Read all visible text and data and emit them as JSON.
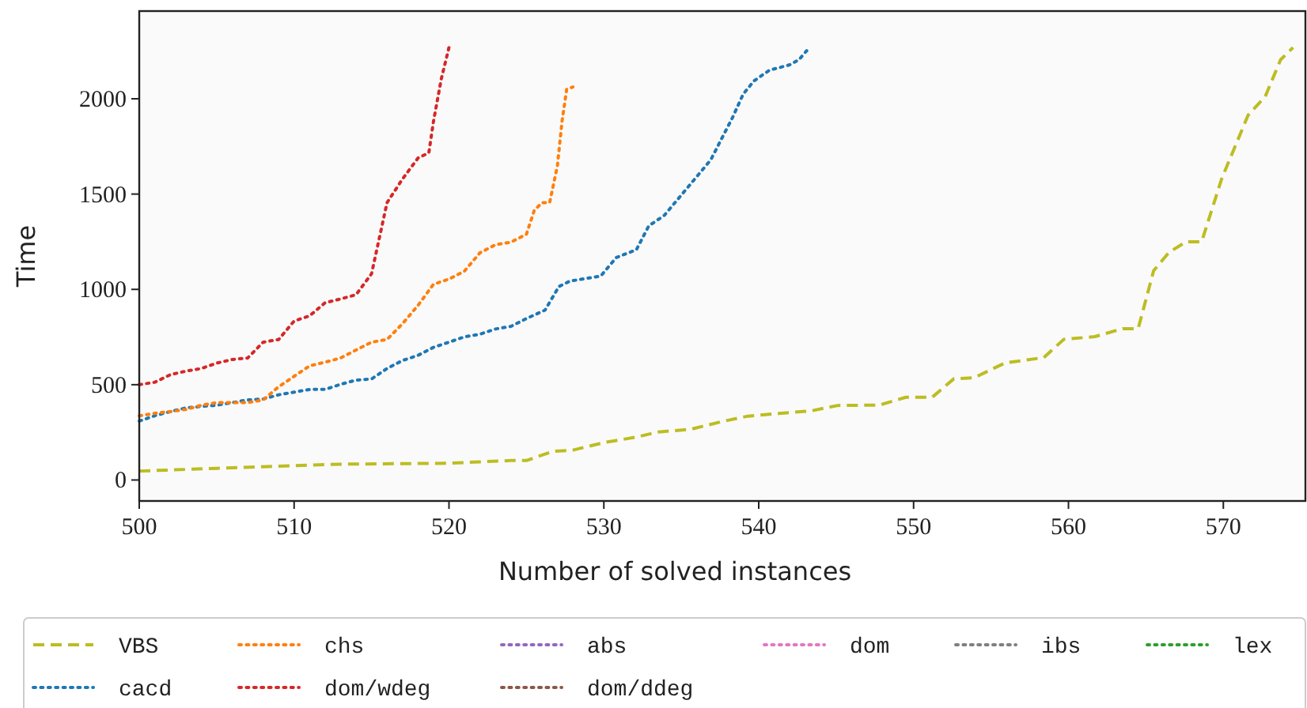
{
  "chart_data": {
    "type": "line",
    "xlabel": "Number of solved instances",
    "ylabel": "Time",
    "xlim": [
      500,
      575.3
    ],
    "ylim": [
      -110,
      2460
    ],
    "xticks": [
      500,
      510,
      520,
      530,
      540,
      550,
      560,
      570
    ],
    "yticks": [
      0,
      500,
      1000,
      1500,
      2000
    ],
    "grid": false,
    "legend": "bottom",
    "series": [
      {
        "name": "VBS",
        "color": "#bcbd22",
        "line_style": "dashed",
        "x": [
          500,
          505,
          510,
          513,
          520,
          521.6,
          524,
          525,
          526.7,
          528,
          530.1,
          532.1,
          533.5,
          535.6,
          537.7,
          539.3,
          541.3,
          543.4,
          545.1,
          547.8,
          549.5,
          551.2,
          552.6,
          553.9,
          555.9,
          558.4,
          559.7,
          561.7,
          563.5,
          564.5,
          565.5,
          566.5,
          567.6,
          568.6,
          569.9,
          571.6,
          572.7,
          573.7,
          574.5
        ],
        "values": [
          47,
          61,
          75,
          83,
          88,
          94,
          102,
          102,
          150,
          157,
          198,
          225,
          252,
          266,
          308,
          335,
          349,
          363,
          391,
          393,
          434,
          434,
          531,
          536,
          614,
          642,
          738,
          752,
          794,
          794,
          1098,
          1195,
          1250,
          1250,
          1582,
          1914,
          2011,
          2205,
          2269
        ]
      },
      {
        "name": "cacd",
        "color": "#1f77b4",
        "line_style": "dotted",
        "x": [
          500,
          501,
          502,
          503,
          504,
          505,
          506,
          507,
          508,
          509,
          510,
          511,
          512,
          513,
          514,
          515,
          516,
          517,
          518,
          519,
          520,
          521,
          522,
          523,
          524,
          525,
          526.2,
          527.1,
          527.8,
          529.8,
          530.8,
          532.1,
          532.9,
          533.9,
          534.9,
          535.9,
          536.9,
          537.6,
          538.3,
          539,
          539.7,
          540.7,
          542,
          542.6,
          543.1
        ],
        "values": [
          309,
          337,
          359,
          378,
          386,
          392,
          406,
          420,
          425,
          447,
          461,
          475,
          475,
          502,
          524,
          530,
          585,
          627,
          654,
          696,
          723,
          751,
          765,
          792,
          806,
          847,
          891,
          1015,
          1043,
          1070,
          1167,
          1208,
          1333,
          1388,
          1485,
          1582,
          1679,
          1790,
          1900,
          2025,
          2094,
          2150,
          2178,
          2205,
          2252
        ]
      },
      {
        "name": "chs",
        "color": "#ff7f0e",
        "line_style": "dotted",
        "x": [
          500,
          501,
          502,
          503,
          504,
          505,
          506,
          507,
          508,
          509,
          510,
          511,
          512,
          513,
          514,
          515,
          516,
          517,
          518,
          519,
          520,
          521,
          522,
          523,
          524,
          525,
          525.5,
          526,
          526.5,
          527,
          527.3,
          527.6,
          528
        ],
        "values": [
          337,
          350,
          359,
          370,
          392,
          406,
          406,
          406,
          420,
          489,
          544,
          599,
          618,
          640,
          682,
          723,
          737,
          820,
          916,
          1027,
          1054,
          1096,
          1192,
          1234,
          1248,
          1289,
          1413,
          1455,
          1455,
          1648,
          1882,
          2050,
          2062
        ]
      },
      {
        "name": "dom/wdeg",
        "color": "#d62728",
        "line_style": "dotted",
        "x": [
          500,
          501,
          502,
          503,
          504,
          505,
          506,
          507,
          508,
          509,
          510,
          511,
          512,
          513,
          514,
          515,
          516,
          517,
          518,
          518.7,
          519,
          519.5,
          520
        ],
        "values": [
          500,
          513,
          552,
          571,
          585,
          613,
          632,
          640,
          723,
          737,
          834,
          861,
          930,
          950,
          972,
          1082,
          1455,
          1579,
          1689,
          1717,
          1882,
          2103,
          2269
        ]
      },
      {
        "name": "abs",
        "color": "#9467bd",
        "line_style": "dotted"
      },
      {
        "name": "dom/ddeg",
        "color": "#8c564b",
        "line_style": "dotted"
      },
      {
        "name": "dom",
        "color": "#e377c2",
        "line_style": "dotted"
      },
      {
        "name": "ibs",
        "color": "#7f7f7f",
        "line_style": "dotted"
      },
      {
        "name": "lex",
        "color": "#2ca02c",
        "line_style": "dotted"
      }
    ]
  }
}
